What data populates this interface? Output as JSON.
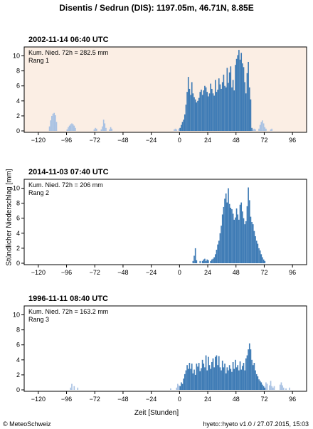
{
  "title": "Disentis / Sedrun (DIS): 1197.05m, 46.71N, 8.85E",
  "ylabel": "Stündlicher Niederschlag [mm]",
  "xlabel": "Zeit [Stunden]",
  "footer_left": "© MeteoSchweiz",
  "footer_right": "hyeto::hyeto v1.0 / 27.07.2015, 15:03",
  "colors": {
    "main": "#3e7bb5",
    "light": "#a9c2e3",
    "highlight": "#fbeee4",
    "frame": "#000000"
  },
  "chart_data": [
    {
      "type": "bar",
      "title": "2002-11-14 06:40 UTC",
      "annotation_1": "Kum. Nied. 72h = 282.5 mm",
      "annotation_2": "Rang 1",
      "highlight": true,
      "xlim": [
        -132,
        108
      ],
      "ylim": [
        0,
        11
      ],
      "xticks": [
        -120,
        -96,
        -72,
        -48,
        -24,
        0,
        24,
        48,
        72,
        96
      ],
      "yticks": [
        0,
        2,
        4,
        6,
        8,
        10
      ],
      "bars": [
        [
          -111,
          0.6,
          "l"
        ],
        [
          -110,
          1.4,
          "l"
        ],
        [
          -109,
          2.0,
          "l"
        ],
        [
          -108,
          2.3,
          "l"
        ],
        [
          -107,
          2.4,
          "l"
        ],
        [
          -106,
          2.1,
          "l"
        ],
        [
          -105,
          1.2,
          "l"
        ],
        [
          -96,
          0.2,
          "l"
        ],
        [
          -95,
          0.5,
          "l"
        ],
        [
          -94,
          0.7,
          "l"
        ],
        [
          -93,
          0.9,
          "l"
        ],
        [
          -92,
          1.0,
          "l"
        ],
        [
          -91,
          0.9,
          "l"
        ],
        [
          -90,
          0.7,
          "l"
        ],
        [
          -89,
          0.4,
          "l"
        ],
        [
          -73,
          0.2,
          "l"
        ],
        [
          -72,
          0.4,
          "l"
        ],
        [
          -71,
          0.3,
          "l"
        ],
        [
          -67,
          0.2,
          "l"
        ],
        [
          -66,
          0.6,
          "l"
        ],
        [
          -65,
          1.5,
          "l"
        ],
        [
          -64,
          1.0,
          "l"
        ],
        [
          -63,
          0.4,
          "l"
        ],
        [
          -60,
          0.2,
          "l"
        ],
        [
          -59,
          0.5,
          "l"
        ],
        [
          -58,
          0.3,
          "l"
        ],
        [
          -5,
          0.2,
          "l"
        ],
        [
          -4,
          0.3,
          "l"
        ],
        [
          -3,
          0.2,
          "l"
        ],
        [
          -1,
          0.3,
          "l"
        ],
        [
          0,
          0.4,
          "d"
        ],
        [
          1,
          0.8,
          "d"
        ],
        [
          2,
          1.2,
          "d"
        ],
        [
          3,
          1.5,
          "d"
        ],
        [
          4,
          2.2,
          "d"
        ],
        [
          5,
          3.5,
          "d"
        ],
        [
          6,
          5.2,
          "d"
        ],
        [
          7,
          7.2,
          "d"
        ],
        [
          8,
          5.6,
          "d"
        ],
        [
          9,
          4.8,
          "d"
        ],
        [
          10,
          6.5,
          "d"
        ],
        [
          11,
          5.0,
          "d"
        ],
        [
          12,
          4.5,
          "d"
        ],
        [
          13,
          4.2,
          "d"
        ],
        [
          14,
          3.8,
          "d"
        ],
        [
          15,
          4.0,
          "d"
        ],
        [
          16,
          4.4,
          "d"
        ],
        [
          17,
          5.2,
          "d"
        ],
        [
          18,
          5.5,
          "d"
        ],
        [
          19,
          4.8,
          "d"
        ],
        [
          20,
          5.4,
          "d"
        ],
        [
          21,
          6.0,
          "d"
        ],
        [
          22,
          5.8,
          "d"
        ],
        [
          23,
          5.2,
          "d"
        ],
        [
          24,
          4.6,
          "d"
        ],
        [
          25,
          5.0,
          "d"
        ],
        [
          26,
          6.3,
          "d"
        ],
        [
          27,
          5.6,
          "d"
        ],
        [
          28,
          5.0,
          "d"
        ],
        [
          29,
          4.7,
          "d"
        ],
        [
          30,
          6.8,
          "d"
        ],
        [
          31,
          5.2,
          "d"
        ],
        [
          32,
          5.5,
          "d"
        ],
        [
          33,
          7.0,
          "d"
        ],
        [
          34,
          6.2,
          "d"
        ],
        [
          35,
          5.6,
          "d"
        ],
        [
          36,
          6.5,
          "d"
        ],
        [
          37,
          7.5,
          "d"
        ],
        [
          38,
          6.0,
          "d"
        ],
        [
          39,
          5.8,
          "d"
        ],
        [
          40,
          8.4,
          "d"
        ],
        [
          41,
          6.4,
          "d"
        ],
        [
          42,
          7.8,
          "d"
        ],
        [
          43,
          8.6,
          "d"
        ],
        [
          44,
          5.8,
          "d"
        ],
        [
          45,
          6.8,
          "d"
        ],
        [
          46,
          5.4,
          "d"
        ],
        [
          47,
          8.8,
          "d"
        ],
        [
          48,
          9.6,
          "d"
        ],
        [
          49,
          10.1,
          "d"
        ],
        [
          50,
          10.8,
          "d"
        ],
        [
          51,
          9.5,
          "d"
        ],
        [
          52,
          10.4,
          "d"
        ],
        [
          53,
          9.0,
          "d"
        ],
        [
          54,
          8.5,
          "d"
        ],
        [
          55,
          6.5,
          "d"
        ],
        [
          56,
          5.0,
          "d"
        ],
        [
          57,
          7.7,
          "d"
        ],
        [
          58,
          9.2,
          "d"
        ],
        [
          59,
          5.8,
          "d"
        ],
        [
          60,
          4.2,
          "d"
        ],
        [
          61,
          0.4,
          "d"
        ],
        [
          62,
          0.2,
          "l"
        ],
        [
          63,
          0.3,
          "l"
        ],
        [
          64,
          0.2,
          "l"
        ],
        [
          67,
          0.3,
          "l"
        ],
        [
          68,
          0.8,
          "l"
        ],
        [
          69,
          1.2,
          "l"
        ],
        [
          70,
          1.4,
          "l"
        ],
        [
          71,
          1.0,
          "l"
        ],
        [
          72,
          0.5,
          "l"
        ],
        [
          73,
          0.3,
          "l"
        ],
        [
          77,
          0.2,
          "l"
        ],
        [
          78,
          0.3,
          "l"
        ]
      ]
    },
    {
      "type": "bar",
      "title": "2014-11-03 07:40 UTC",
      "annotation_1": "Kum. Nied. 72h = 206 mm",
      "annotation_2": "Rang 2",
      "highlight": false,
      "xlim": [
        -132,
        108
      ],
      "ylim": [
        0,
        11
      ],
      "xticks": [
        -120,
        -96,
        -72,
        -48,
        -24,
        0,
        24,
        48,
        72,
        96
      ],
      "yticks": [
        0,
        2,
        4,
        6,
        8,
        10
      ],
      "bars": [
        [
          11,
          0.3,
          "d"
        ],
        [
          12,
          1.0,
          "d"
        ],
        [
          13,
          2.0,
          "d"
        ],
        [
          14,
          0.4,
          "d"
        ],
        [
          17,
          0.3,
          "d"
        ],
        [
          19,
          0.3,
          "d"
        ],
        [
          20,
          0.5,
          "d"
        ],
        [
          21,
          0.6,
          "d"
        ],
        [
          22,
          0.3,
          "d"
        ],
        [
          23,
          0.5,
          "d"
        ],
        [
          24,
          0.4,
          "d"
        ],
        [
          26,
          0.3,
          "d"
        ],
        [
          27,
          0.5,
          "d"
        ],
        [
          28,
          0.6,
          "d"
        ],
        [
          29,
          0.8,
          "d"
        ],
        [
          30,
          1.2,
          "d"
        ],
        [
          31,
          1.8,
          "d"
        ],
        [
          32,
          2.5,
          "d"
        ],
        [
          33,
          3.0,
          "d"
        ],
        [
          34,
          4.0,
          "d"
        ],
        [
          35,
          5.0,
          "d"
        ],
        [
          36,
          6.5,
          "d"
        ],
        [
          37,
          7.5,
          "d"
        ],
        [
          38,
          8.6,
          "d"
        ],
        [
          39,
          9.3,
          "d"
        ],
        [
          40,
          8.1,
          "d"
        ],
        [
          41,
          10.0,
          "d"
        ],
        [
          42,
          7.9,
          "d"
        ],
        [
          43,
          7.4,
          "d"
        ],
        [
          44,
          7.2,
          "d"
        ],
        [
          45,
          6.6,
          "d"
        ],
        [
          46,
          5.8,
          "d"
        ],
        [
          47,
          6.1,
          "d"
        ],
        [
          48,
          7.3,
          "d"
        ],
        [
          49,
          6.5,
          "d"
        ],
        [
          50,
          5.8,
          "d"
        ],
        [
          51,
          7.8,
          "d"
        ],
        [
          52,
          8.1,
          "d"
        ],
        [
          53,
          6.9,
          "d"
        ],
        [
          54,
          6.0,
          "d"
        ],
        [
          55,
          5.2,
          "d"
        ],
        [
          56,
          5.6,
          "d"
        ],
        [
          57,
          7.6,
          "d"
        ],
        [
          58,
          10.1,
          "d"
        ],
        [
          59,
          8.4,
          "d"
        ],
        [
          60,
          6.2,
          "d"
        ],
        [
          61,
          5.5,
          "d"
        ],
        [
          62,
          5.2,
          "d"
        ],
        [
          63,
          4.3,
          "d"
        ],
        [
          64,
          3.6,
          "d"
        ],
        [
          65,
          3.0,
          "d"
        ],
        [
          66,
          2.6,
          "d"
        ],
        [
          67,
          2.0,
          "d"
        ],
        [
          68,
          1.7,
          "d"
        ],
        [
          69,
          1.2,
          "d"
        ],
        [
          70,
          0.8,
          "d"
        ],
        [
          71,
          0.5,
          "d"
        ],
        [
          72,
          0.3,
          "d"
        ]
      ]
    },
    {
      "type": "bar",
      "title": "1996-11-11 08:40 UTC",
      "annotation_1": "Kum. Nied. 72h = 163.2 mm",
      "annotation_2": "Rang 3",
      "highlight": false,
      "xlim": [
        -132,
        108
      ],
      "ylim": [
        0,
        11
      ],
      "xticks": [
        -120,
        -96,
        -72,
        -48,
        -24,
        0,
        24,
        48,
        72,
        96
      ],
      "yticks": [
        0,
        2,
        4,
        6,
        8,
        10
      ],
      "bars": [
        [
          -93,
          0.3,
          "l"
        ],
        [
          -92,
          0.8,
          "l"
        ],
        [
          -90,
          0.5,
          "l"
        ],
        [
          -87,
          0.3,
          "l"
        ],
        [
          -8,
          0.2,
          "l"
        ],
        [
          -3,
          0.3,
          "l"
        ],
        [
          -2,
          0.8,
          "l"
        ],
        [
          -1,
          0.6,
          "l"
        ],
        [
          0,
          0.5,
          "d"
        ],
        [
          1,
          1.0,
          "d"
        ],
        [
          2,
          0.8,
          "d"
        ],
        [
          3,
          1.5,
          "d"
        ],
        [
          4,
          2.1,
          "d"
        ],
        [
          5,
          2.6,
          "d"
        ],
        [
          6,
          3.3,
          "d"
        ],
        [
          7,
          2.8,
          "d"
        ],
        [
          8,
          3.6,
          "d"
        ],
        [
          9,
          2.8,
          "d"
        ],
        [
          10,
          3.5,
          "d"
        ],
        [
          11,
          2.2,
          "d"
        ],
        [
          12,
          2.7,
          "d"
        ],
        [
          13,
          2.0,
          "d"
        ],
        [
          14,
          3.5,
          "d"
        ],
        [
          15,
          3.1,
          "d"
        ],
        [
          16,
          3.6,
          "d"
        ],
        [
          17,
          2.5,
          "d"
        ],
        [
          18,
          2.9,
          "d"
        ],
        [
          19,
          4.0,
          "d"
        ],
        [
          20,
          3.5,
          "d"
        ],
        [
          21,
          3.0,
          "d"
        ],
        [
          22,
          4.6,
          "d"
        ],
        [
          23,
          2.6,
          "d"
        ],
        [
          24,
          4.4,
          "d"
        ],
        [
          25,
          3.3,
          "d"
        ],
        [
          26,
          2.8,
          "d"
        ],
        [
          27,
          3.7,
          "d"
        ],
        [
          28,
          4.2,
          "d"
        ],
        [
          29,
          3.0,
          "d"
        ],
        [
          30,
          4.4,
          "d"
        ],
        [
          31,
          4.6,
          "d"
        ],
        [
          32,
          3.3,
          "d"
        ],
        [
          33,
          4.5,
          "d"
        ],
        [
          34,
          3.0,
          "d"
        ],
        [
          35,
          2.6,
          "d"
        ],
        [
          36,
          3.9,
          "d"
        ],
        [
          37,
          3.0,
          "d"
        ],
        [
          38,
          3.5,
          "d"
        ],
        [
          39,
          2.2,
          "d"
        ],
        [
          40,
          3.0,
          "d"
        ],
        [
          41,
          2.6,
          "d"
        ],
        [
          42,
          3.3,
          "d"
        ],
        [
          43,
          2.8,
          "d"
        ],
        [
          44,
          2.4,
          "d"
        ],
        [
          45,
          3.7,
          "d"
        ],
        [
          46,
          2.8,
          "d"
        ],
        [
          47,
          4.0,
          "d"
        ],
        [
          48,
          3.0,
          "d"
        ],
        [
          49,
          3.3,
          "d"
        ],
        [
          50,
          2.6,
          "d"
        ],
        [
          51,
          3.8,
          "d"
        ],
        [
          52,
          2.7,
          "d"
        ],
        [
          53,
          3.2,
          "d"
        ],
        [
          54,
          3.6,
          "d"
        ],
        [
          55,
          2.6,
          "d"
        ],
        [
          56,
          4.2,
          "d"
        ],
        [
          57,
          4.6,
          "d"
        ],
        [
          58,
          5.4,
          "d"
        ],
        [
          59,
          6.2,
          "d"
        ],
        [
          60,
          5.4,
          "d"
        ],
        [
          61,
          4.0,
          "d"
        ],
        [
          62,
          3.3,
          "d"
        ],
        [
          63,
          3.6,
          "d"
        ],
        [
          64,
          2.6,
          "d"
        ],
        [
          65,
          2.1,
          "d"
        ],
        [
          66,
          1.8,
          "d"
        ],
        [
          67,
          1.4,
          "d"
        ],
        [
          68,
          1.2,
          "d"
        ],
        [
          69,
          1.0,
          "d"
        ],
        [
          70,
          0.7,
          "d"
        ],
        [
          71,
          0.5,
          "d"
        ],
        [
          72,
          0.3,
          "d"
        ],
        [
          73,
          1.0,
          "l"
        ],
        [
          74,
          0.8,
          "l"
        ],
        [
          76,
          0.6,
          "l"
        ],
        [
          77,
          1.2,
          "l"
        ],
        [
          78,
          0.5,
          "l"
        ],
        [
          79,
          0.3,
          "l"
        ],
        [
          80,
          0.5,
          "l"
        ],
        [
          85,
          0.7,
          "l"
        ],
        [
          86,
          1.0,
          "l"
        ],
        [
          87,
          0.6,
          "l"
        ],
        [
          88,
          0.3,
          "l"
        ],
        [
          90,
          0.2,
          "l"
        ],
        [
          93,
          0.3,
          "l"
        ]
      ]
    }
  ]
}
